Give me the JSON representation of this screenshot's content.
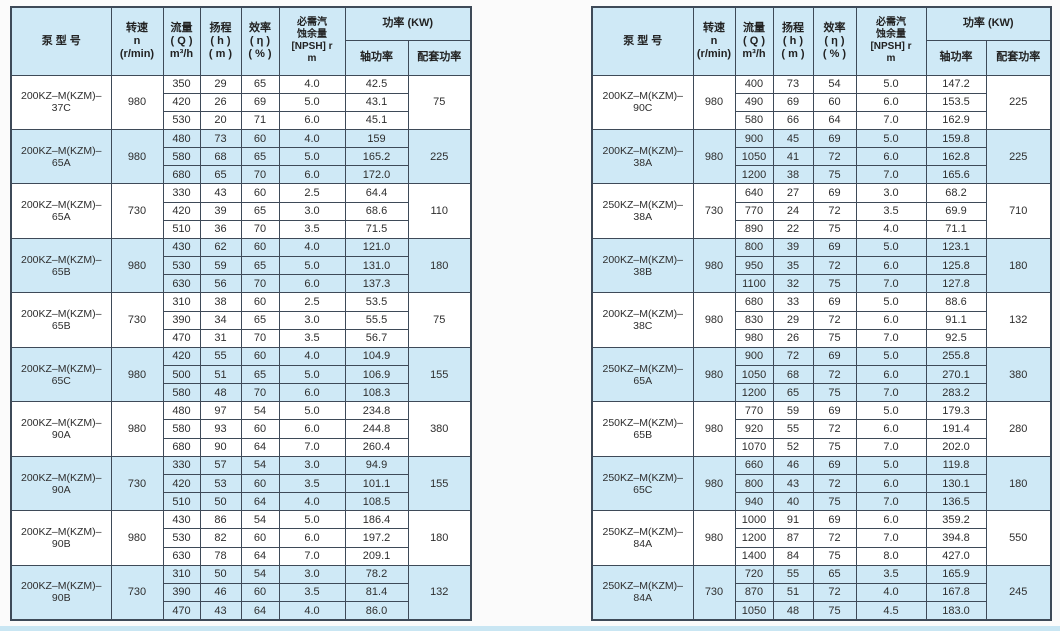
{
  "colors": {
    "row_alt": "#cfe9f6",
    "row_base": "#ffffff",
    "border": "#3e4a58",
    "text": "#2e2e2e",
    "bottom_strip": "#c9e6f3"
  },
  "header": {
    "model": "泵  型  号",
    "speed": [
      "转速",
      "n",
      "(r/min)"
    ],
    "flow": [
      "流量",
      "( Q )",
      "m³/h"
    ],
    "head": [
      "扬程",
      "( h )",
      "( m )"
    ],
    "efficiency": [
      "效率",
      "( η )",
      "( % )"
    ],
    "npsh": [
      "必需汽",
      "蚀余量",
      "[NPSH] r",
      "m"
    ],
    "power_group": "功率 (KW)",
    "shaft_power": "轴功率",
    "matched_power": "配套功率"
  },
  "tables": [
    {
      "name": "left",
      "groups": [
        {
          "model": "200KZ–M(KZM)–37C",
          "speed": "980",
          "matched": "75",
          "rows": [
            [
              "350",
              "29",
              "65",
              "4.0",
              "42.5"
            ],
            [
              "420",
              "26",
              "69",
              "5.0",
              "43.1"
            ],
            [
              "530",
              "20",
              "71",
              "6.0",
              "45.1"
            ]
          ]
        },
        {
          "model": "200KZ–M(KZM)–65A",
          "speed": "980",
          "matched": "225",
          "rows": [
            [
              "480",
              "73",
              "60",
              "4.0",
              "159"
            ],
            [
              "580",
              "68",
              "65",
              "5.0",
              "165.2"
            ],
            [
              "680",
              "65",
              "70",
              "6.0",
              "172.0"
            ]
          ]
        },
        {
          "model": "200KZ–M(KZM)–65A",
          "speed": "730",
          "matched": "110",
          "rows": [
            [
              "330",
              "43",
              "60",
              "2.5",
              "64.4"
            ],
            [
              "420",
              "39",
              "65",
              "3.0",
              "68.6"
            ],
            [
              "510",
              "36",
              "70",
              "3.5",
              "71.5"
            ]
          ]
        },
        {
          "model": "200KZ–M(KZM)–65B",
          "speed": "980",
          "matched": "180",
          "rows": [
            [
              "430",
              "62",
              "60",
              "4.0",
              "121.0"
            ],
            [
              "530",
              "59",
              "65",
              "5.0",
              "131.0"
            ],
            [
              "630",
              "56",
              "70",
              "6.0",
              "137.3"
            ]
          ]
        },
        {
          "model": "200KZ–M(KZM)–65B",
          "speed": "730",
          "matched": "75",
          "rows": [
            [
              "310",
              "38",
              "60",
              "2.5",
              "53.5"
            ],
            [
              "390",
              "34",
              "65",
              "3.0",
              "55.5"
            ],
            [
              "470",
              "31",
              "70",
              "3.5",
              "56.7"
            ]
          ]
        },
        {
          "model": "200KZ–M(KZM)–65C",
          "speed": "980",
          "matched": "155",
          "rows": [
            [
              "420",
              "55",
              "60",
              "4.0",
              "104.9"
            ],
            [
              "500",
              "51",
              "65",
              "5.0",
              "106.9"
            ],
            [
              "580",
              "48",
              "70",
              "6.0",
              "108.3"
            ]
          ]
        },
        {
          "model": "200KZ–M(KZM)–90A",
          "speed": "980",
          "matched": "380",
          "rows": [
            [
              "480",
              "97",
              "54",
              "5.0",
              "234.8"
            ],
            [
              "580",
              "93",
              "60",
              "6.0",
              "244.8"
            ],
            [
              "680",
              "90",
              "64",
              "7.0",
              "260.4"
            ]
          ]
        },
        {
          "model": "200KZ–M(KZM)–90A",
          "speed": "730",
          "matched": "155",
          "rows": [
            [
              "330",
              "57",
              "54",
              "3.0",
              "94.9"
            ],
            [
              "420",
              "53",
              "60",
              "3.5",
              "101.1"
            ],
            [
              "510",
              "50",
              "64",
              "4.0",
              "108.5"
            ]
          ]
        },
        {
          "model": "200KZ–M(KZM)–90B",
          "speed": "980",
          "matched": "180",
          "rows": [
            [
              "430",
              "86",
              "54",
              "5.0",
              "186.4"
            ],
            [
              "530",
              "82",
              "60",
              "6.0",
              "197.2"
            ],
            [
              "630",
              "78",
              "64",
              "7.0",
              "209.1"
            ]
          ]
        },
        {
          "model": "200KZ–M(KZM)–90B",
          "speed": "730",
          "matched": "132",
          "rows": [
            [
              "310",
              "50",
              "54",
              "3.0",
              "78.2"
            ],
            [
              "390",
              "46",
              "60",
              "3.5",
              "81.4"
            ],
            [
              "470",
              "43",
              "64",
              "4.0",
              "86.0"
            ]
          ]
        }
      ]
    },
    {
      "name": "right",
      "groups": [
        {
          "model": "200KZ–M(KZM)–90C",
          "speed": "980",
          "matched": "225",
          "rows": [
            [
              "400",
              "73",
              "54",
              "5.0",
              "147.2"
            ],
            [
              "490",
              "69",
              "60",
              "6.0",
              "153.5"
            ],
            [
              "580",
              "66",
              "64",
              "7.0",
              "162.9"
            ]
          ]
        },
        {
          "model": "200KZ–M(KZM)–38A",
          "speed": "980",
          "matched": "225",
          "rows": [
            [
              "900",
              "45",
              "69",
              "5.0",
              "159.8"
            ],
            [
              "1050",
              "41",
              "72",
              "6.0",
              "162.8"
            ],
            [
              "1200",
              "38",
              "75",
              "7.0",
              "165.6"
            ]
          ]
        },
        {
          "model": "250KZ–M(KZM)–38A",
          "speed": "730",
          "matched": "710",
          "rows": [
            [
              "640",
              "27",
              "69",
              "3.0",
              "68.2"
            ],
            [
              "770",
              "24",
              "72",
              "3.5",
              "69.9"
            ],
            [
              "890",
              "22",
              "75",
              "4.0",
              "71.1"
            ]
          ]
        },
        {
          "model": "200KZ–M(KZM)–38B",
          "speed": "980",
          "matched": "180",
          "rows": [
            [
              "800",
              "39",
              "69",
              "5.0",
              "123.1"
            ],
            [
              "950",
              "35",
              "72",
              "6.0",
              "125.8"
            ],
            [
              "1100",
              "32",
              "75",
              "7.0",
              "127.8"
            ]
          ]
        },
        {
          "model": "200KZ–M(KZM)–38C",
          "speed": "980",
          "matched": "132",
          "rows": [
            [
              "680",
              "33",
              "69",
              "5.0",
              "88.6"
            ],
            [
              "830",
              "29",
              "72",
              "6.0",
              "91.1"
            ],
            [
              "980",
              "26",
              "75",
              "7.0",
              "92.5"
            ]
          ]
        },
        {
          "model": "250KZ–M(KZM)–65A",
          "speed": "980",
          "matched": "380",
          "rows": [
            [
              "900",
              "72",
              "69",
              "5.0",
              "255.8"
            ],
            [
              "1050",
              "68",
              "72",
              "6.0",
              "270.1"
            ],
            [
              "1200",
              "65",
              "75",
              "7.0",
              "283.2"
            ]
          ]
        },
        {
          "model": "250KZ–M(KZM)–65B",
          "speed": "980",
          "matched": "280",
          "rows": [
            [
              "770",
              "59",
              "69",
              "5.0",
              "179.3"
            ],
            [
              "920",
              "55",
              "72",
              "6.0",
              "191.4"
            ],
            [
              "1070",
              "52",
              "75",
              "7.0",
              "202.0"
            ]
          ]
        },
        {
          "model": "250KZ–M(KZM)–65C",
          "speed": "980",
          "matched": "180",
          "rows": [
            [
              "660",
              "46",
              "69",
              "5.0",
              "119.8"
            ],
            [
              "800",
              "43",
              "72",
              "6.0",
              "130.1"
            ],
            [
              "940",
              "40",
              "75",
              "7.0",
              "136.5"
            ]
          ]
        },
        {
          "model": "250KZ–M(KZM)–84A",
          "speed": "980",
          "matched": "550",
          "rows": [
            [
              "1000",
              "91",
              "69",
              "6.0",
              "359.2"
            ],
            [
              "1200",
              "87",
              "72",
              "7.0",
              "394.8"
            ],
            [
              "1400",
              "84",
              "75",
              "8.0",
              "427.0"
            ]
          ]
        },
        {
          "model": "250KZ–M(KZM)–84A",
          "speed": "730",
          "matched": "245",
          "rows": [
            [
              "720",
              "55",
              "65",
              "3.5",
              "165.9"
            ],
            [
              "870",
              "51",
              "72",
              "4.0",
              "167.8"
            ],
            [
              "1050",
              "48",
              "75",
              "4.5",
              "183.0"
            ]
          ]
        }
      ]
    }
  ]
}
